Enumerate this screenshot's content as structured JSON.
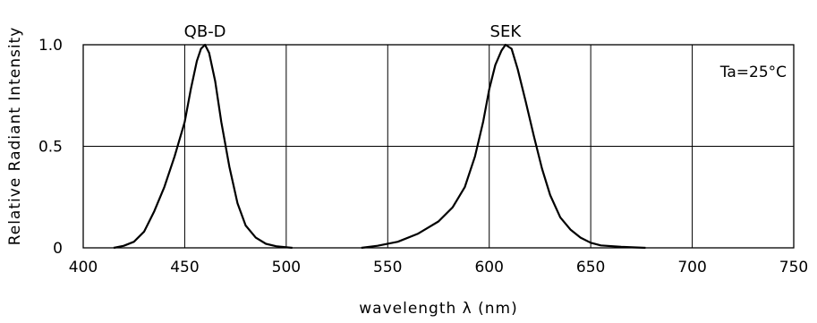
{
  "chart_data": {
    "type": "line",
    "title": "",
    "xlabel": "wavelength λ (nm)",
    "ylabel": "Relative Radiant Intensity",
    "xlim": [
      400,
      750
    ],
    "ylim": [
      0,
      1.0
    ],
    "x_ticks": [
      "400",
      "450",
      "500",
      "550",
      "600",
      "650",
      "700",
      "750"
    ],
    "y_ticks": [
      "0",
      "0.5",
      "1.0"
    ],
    "grid": true,
    "annotation": "Ta=25°C",
    "series": [
      {
        "name": "QB-D",
        "color": "#000000",
        "points": [
          [
            415,
            0.0
          ],
          [
            420,
            0.01
          ],
          [
            425,
            0.03
          ],
          [
            430,
            0.08
          ],
          [
            435,
            0.18
          ],
          [
            440,
            0.3
          ],
          [
            445,
            0.45
          ],
          [
            450,
            0.62
          ],
          [
            453,
            0.78
          ],
          [
            456,
            0.92
          ],
          [
            458,
            0.98
          ],
          [
            460,
            1.0
          ],
          [
            462,
            0.96
          ],
          [
            465,
            0.82
          ],
          [
            468,
            0.62
          ],
          [
            472,
            0.4
          ],
          [
            476,
            0.22
          ],
          [
            480,
            0.11
          ],
          [
            485,
            0.05
          ],
          [
            490,
            0.02
          ],
          [
            495,
            0.008
          ],
          [
            500,
            0.003
          ],
          [
            503,
            0.0
          ]
        ]
      },
      {
        "name": "SEK",
        "color": "#000000",
        "points": [
          [
            537,
            0.0
          ],
          [
            545,
            0.01
          ],
          [
            555,
            0.03
          ],
          [
            565,
            0.07
          ],
          [
            575,
            0.13
          ],
          [
            582,
            0.2
          ],
          [
            588,
            0.3
          ],
          [
            593,
            0.45
          ],
          [
            597,
            0.62
          ],
          [
            600,
            0.78
          ],
          [
            603,
            0.9
          ],
          [
            606,
            0.97
          ],
          [
            608,
            1.0
          ],
          [
            611,
            0.98
          ],
          [
            614,
            0.88
          ],
          [
            618,
            0.72
          ],
          [
            622,
            0.55
          ],
          [
            626,
            0.39
          ],
          [
            630,
            0.26
          ],
          [
            635,
            0.15
          ],
          [
            640,
            0.09
          ],
          [
            645,
            0.05
          ],
          [
            650,
            0.025
          ],
          [
            655,
            0.012
          ],
          [
            665,
            0.005
          ],
          [
            677,
            0.0
          ]
        ]
      }
    ]
  }
}
